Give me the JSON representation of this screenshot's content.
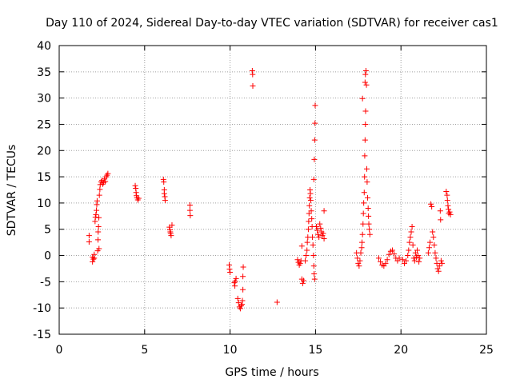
{
  "chart_data": {
    "type": "scatter",
    "title": "Day 110 of 2024, Sidereal Day-to-day VTEC variation (SDTVAR) for receiver cas1",
    "xlabel": "GPS time / hours",
    "ylabel": "SDTVAR / TECUs",
    "xlim": [
      0,
      25
    ],
    "ylim": [
      -15,
      40
    ],
    "x_ticks": [
      "0",
      "5",
      "10",
      "15",
      "20",
      "25"
    ],
    "y_ticks": [
      "-15",
      "-10",
      "-5",
      "0",
      "5",
      "10",
      "15",
      "20",
      "25",
      "30",
      "35",
      "40"
    ],
    "x_tick_values": [
      0,
      5,
      10,
      15,
      20,
      25
    ],
    "y_tick_values": [
      -15,
      -10,
      -5,
      0,
      5,
      10,
      15,
      20,
      25,
      30,
      35,
      40
    ],
    "grid": true,
    "marker": "+",
    "colors": {
      "series": "#ff0000",
      "grid": "#a0a0a0",
      "axis": "#000000"
    },
    "series": [
      {
        "name": "SDTVAR",
        "points": [
          [
            1.75,
            3.8
          ],
          [
            1.75,
            2.6
          ],
          [
            1.95,
            -0.3
          ],
          [
            1.95,
            -1.2
          ],
          [
            2.0,
            -0.7
          ],
          [
            2.05,
            0.2
          ],
          [
            2.05,
            -0.5
          ],
          [
            2.1,
            6.5
          ],
          [
            2.12,
            7.3
          ],
          [
            2.15,
            7.8
          ],
          [
            2.18,
            8.6
          ],
          [
            2.2,
            9.7
          ],
          [
            2.22,
            10.4
          ],
          [
            2.25,
            0.9
          ],
          [
            2.27,
            3.0
          ],
          [
            2.28,
            4.5
          ],
          [
            2.3,
            5.5
          ],
          [
            2.32,
            7.2
          ],
          [
            2.33,
            1.3
          ],
          [
            2.35,
            11.5
          ],
          [
            2.38,
            12.6
          ],
          [
            2.4,
            13.5
          ],
          [
            2.45,
            14.0
          ],
          [
            2.5,
            14.3
          ],
          [
            2.55,
            13.6
          ],
          [
            2.6,
            13.9
          ],
          [
            2.65,
            14.6
          ],
          [
            2.7,
            14.1
          ],
          [
            2.75,
            15.0
          ],
          [
            2.8,
            15.3
          ],
          [
            2.85,
            15.6
          ],
          [
            4.45,
            13.3
          ],
          [
            4.48,
            12.8
          ],
          [
            4.5,
            12.0
          ],
          [
            4.52,
            11.4
          ],
          [
            4.55,
            11.0
          ],
          [
            4.6,
            10.6
          ],
          [
            4.65,
            10.9
          ],
          [
            6.1,
            14.5
          ],
          [
            6.12,
            14.0
          ],
          [
            6.15,
            12.5
          ],
          [
            6.15,
            11.8
          ],
          [
            6.18,
            11.2
          ],
          [
            6.2,
            10.5
          ],
          [
            6.45,
            5.4
          ],
          [
            6.48,
            4.9
          ],
          [
            6.5,
            4.5
          ],
          [
            6.52,
            4.2
          ],
          [
            6.55,
            3.8
          ],
          [
            6.6,
            5.8
          ],
          [
            7.65,
            9.6
          ],
          [
            7.65,
            8.6
          ],
          [
            7.67,
            7.6
          ],
          [
            9.95,
            -1.8
          ],
          [
            9.97,
            -2.6
          ],
          [
            10.0,
            -3.2
          ],
          [
            10.25,
            -5.2
          ],
          [
            10.28,
            -5.8
          ],
          [
            10.3,
            -4.9
          ],
          [
            10.35,
            -4.4
          ],
          [
            10.45,
            -8.2
          ],
          [
            10.5,
            -9.0
          ],
          [
            10.55,
            -9.8
          ],
          [
            10.6,
            -10.1
          ],
          [
            10.65,
            -9.6
          ],
          [
            10.7,
            -9.3
          ],
          [
            10.72,
            -8.6
          ],
          [
            10.75,
            -6.5
          ],
          [
            10.75,
            -4.0
          ],
          [
            10.77,
            -2.2
          ],
          [
            11.3,
            35.2
          ],
          [
            11.32,
            34.5
          ],
          [
            11.33,
            32.3
          ],
          [
            12.75,
            -8.9
          ],
          [
            13.95,
            -0.8
          ],
          [
            14.0,
            -1.3
          ],
          [
            14.05,
            -1.8
          ],
          [
            14.1,
            -1.5
          ],
          [
            14.15,
            -1.0
          ],
          [
            14.2,
            -4.5
          ],
          [
            14.25,
            -5.3
          ],
          [
            14.3,
            -4.8
          ],
          [
            14.2,
            1.8
          ],
          [
            14.4,
            -1.0
          ],
          [
            14.45,
            0.0
          ],
          [
            14.5,
            1.0
          ],
          [
            14.52,
            2.5
          ],
          [
            14.55,
            3.5
          ],
          [
            14.58,
            5.0
          ],
          [
            14.6,
            6.5
          ],
          [
            14.62,
            8.0
          ],
          [
            14.64,
            9.5
          ],
          [
            14.66,
            11.0
          ],
          [
            14.68,
            12.5
          ],
          [
            14.7,
            11.8
          ],
          [
            14.72,
            10.5
          ],
          [
            14.75,
            8.5
          ],
          [
            14.78,
            7.0
          ],
          [
            14.8,
            5.5
          ],
          [
            14.82,
            3.5
          ],
          [
            14.85,
            2.0
          ],
          [
            14.88,
            0.0
          ],
          [
            14.9,
            -2.0
          ],
          [
            14.92,
            -3.5
          ],
          [
            14.95,
            -4.5
          ],
          [
            14.9,
            14.5
          ],
          [
            14.93,
            18.3
          ],
          [
            14.95,
            22.0
          ],
          [
            14.97,
            25.2
          ],
          [
            14.98,
            28.6
          ],
          [
            15.05,
            5.5
          ],
          [
            15.1,
            4.8
          ],
          [
            15.15,
            4.0
          ],
          [
            15.2,
            3.5
          ],
          [
            15.25,
            6.0
          ],
          [
            15.3,
            5.2
          ],
          [
            15.35,
            4.5
          ],
          [
            15.4,
            3.8
          ],
          [
            15.45,
            4.2
          ],
          [
            15.5,
            8.5
          ],
          [
            15.5,
            3.2
          ],
          [
            17.4,
            0.5
          ],
          [
            17.45,
            -0.5
          ],
          [
            17.5,
            -1.5
          ],
          [
            17.55,
            -2.0
          ],
          [
            17.6,
            -1.0
          ],
          [
            17.65,
            0.5
          ],
          [
            17.7,
            1.5
          ],
          [
            17.72,
            2.5
          ],
          [
            17.75,
            4.0
          ],
          [
            17.78,
            6.0
          ],
          [
            17.8,
            8.0
          ],
          [
            17.82,
            10.0
          ],
          [
            17.85,
            12.0
          ],
          [
            17.87,
            15.0
          ],
          [
            17.88,
            19.0
          ],
          [
            17.9,
            22.0
          ],
          [
            17.92,
            25.0
          ],
          [
            17.93,
            27.5
          ],
          [
            17.9,
            33.0
          ],
          [
            17.92,
            34.5
          ],
          [
            17.95,
            35.2
          ],
          [
            17.98,
            32.5
          ],
          [
            18.0,
            16.5
          ],
          [
            18.02,
            14.0
          ],
          [
            18.05,
            11.0
          ],
          [
            18.08,
            9.0
          ],
          [
            18.1,
            7.5
          ],
          [
            18.12,
            6.0
          ],
          [
            18.15,
            5.0
          ],
          [
            18.18,
            4.0
          ],
          [
            17.75,
            29.9
          ],
          [
            18.7,
            -0.5
          ],
          [
            18.8,
            -1.2
          ],
          [
            18.9,
            -1.8
          ],
          [
            19.0,
            -2.0
          ],
          [
            19.1,
            -1.5
          ],
          [
            19.2,
            -0.8
          ],
          [
            19.3,
            0.2
          ],
          [
            19.4,
            0.8
          ],
          [
            19.5,
            1.0
          ],
          [
            19.6,
            0.3
          ],
          [
            19.7,
            -0.5
          ],
          [
            19.8,
            -1.0
          ],
          [
            19.9,
            -0.5
          ],
          [
            20.1,
            -0.8
          ],
          [
            20.2,
            -1.5
          ],
          [
            20.3,
            -1.0
          ],
          [
            20.4,
            0.0
          ],
          [
            20.45,
            1.0
          ],
          [
            20.5,
            2.5
          ],
          [
            20.55,
            3.5
          ],
          [
            20.6,
            4.5
          ],
          [
            20.65,
            5.5
          ],
          [
            20.7,
            2.0
          ],
          [
            20.75,
            -0.5
          ],
          [
            20.8,
            -1.0
          ],
          [
            20.85,
            0.5
          ],
          [
            20.9,
            -0.3
          ],
          [
            20.95,
            1.0
          ],
          [
            21.0,
            0.0
          ],
          [
            21.05,
            -1.2
          ],
          [
            21.1,
            -0.5
          ],
          [
            21.6,
            0.5
          ],
          [
            21.65,
            1.5
          ],
          [
            21.7,
            2.5
          ],
          [
            21.75,
            9.8
          ],
          [
            21.8,
            9.3
          ],
          [
            21.85,
            4.5
          ],
          [
            21.9,
            3.5
          ],
          [
            21.95,
            2.0
          ],
          [
            22.0,
            0.5
          ],
          [
            22.05,
            -0.5
          ],
          [
            22.1,
            -1.5
          ],
          [
            22.15,
            -2.5
          ],
          [
            22.2,
            -3.0
          ],
          [
            22.25,
            -2.0
          ],
          [
            22.3,
            8.5
          ],
          [
            22.32,
            6.8
          ],
          [
            22.35,
            -1.0
          ],
          [
            22.4,
            -1.5
          ],
          [
            22.65,
            12.2
          ],
          [
            22.7,
            11.5
          ],
          [
            22.72,
            10.5
          ],
          [
            22.75,
            9.5
          ],
          [
            22.78,
            8.8
          ],
          [
            22.8,
            8.0
          ],
          [
            22.85,
            8.3
          ],
          [
            22.9,
            7.8
          ]
        ]
      }
    ]
  }
}
